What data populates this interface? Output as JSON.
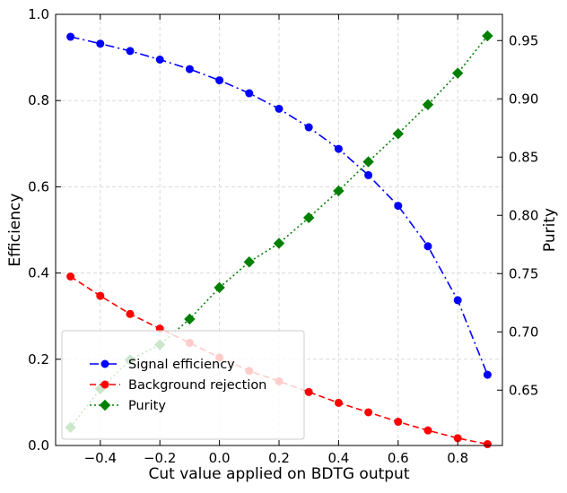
{
  "chart_data": {
    "type": "line",
    "xlabel": "Cut value applied on BDTG output",
    "ylabel": "Efficiency",
    "y2label": "Purity",
    "xlim": [
      -0.55,
      0.95
    ],
    "ylim": [
      0.0,
      1.0
    ],
    "y2lim": [
      0.6025,
      0.9725
    ],
    "x_ticks": [
      -0.4,
      -0.2,
      0.0,
      0.2,
      0.4,
      0.6,
      0.8
    ],
    "x_tick_labels": [
      "−0.4",
      "−0.2",
      "0.0",
      "0.2",
      "0.4",
      "0.6",
      "0.8"
    ],
    "y_ticks": [
      0.0,
      0.2,
      0.4,
      0.6,
      0.8,
      1.0
    ],
    "y_tick_labels": [
      "0.0",
      "0.2",
      "0.4",
      "0.6",
      "0.8",
      "1.0"
    ],
    "y2_ticks": [
      0.65,
      0.7,
      0.75,
      0.8,
      0.85,
      0.9,
      0.95
    ],
    "y2_tick_labels": [
      "0.65",
      "0.70",
      "0.75",
      "0.80",
      "0.85",
      "0.90",
      "0.95"
    ],
    "grid": true,
    "legend_position": "bottom-left",
    "x": [
      -0.5,
      -0.4,
      -0.3,
      -0.2,
      -0.1,
      0.0,
      0.1,
      0.2,
      0.3,
      0.4,
      0.5,
      0.6,
      0.7,
      0.8,
      0.9
    ],
    "series": [
      {
        "name": "Signal efficiency",
        "axis": "left",
        "color": "#0000ff",
        "line_style": "dashdot",
        "marker": "circle",
        "values": [
          0.948,
          0.932,
          0.915,
          0.895,
          0.873,
          0.847,
          0.817,
          0.781,
          0.738,
          0.688,
          0.627,
          0.556,
          0.462,
          0.337,
          0.164
        ]
      },
      {
        "name": "Background rejection",
        "axis": "left",
        "color": "#ff0000",
        "line_style": "dashed",
        "marker": "circle",
        "values": [
          0.392,
          0.347,
          0.305,
          0.271,
          0.238,
          0.204,
          0.173,
          0.149,
          0.124,
          0.099,
          0.077,
          0.055,
          0.035,
          0.017,
          0.003
        ]
      },
      {
        "name": "Purity",
        "axis": "right",
        "color": "#008000",
        "line_style": "dotted",
        "marker": "diamond",
        "values": [
          0.618,
          0.651,
          0.676,
          0.689,
          0.711,
          0.738,
          0.76,
          0.776,
          0.798,
          0.821,
          0.846,
          0.87,
          0.895,
          0.922,
          0.954
        ]
      }
    ]
  }
}
